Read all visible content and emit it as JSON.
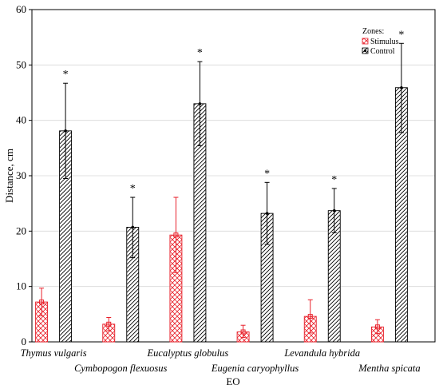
{
  "chart_data": {
    "type": "bar",
    "xlabel": "EO",
    "ylabel": "Distance, cm",
    "ylim": [
      0,
      60
    ],
    "yticks": [
      0,
      10,
      20,
      30,
      40,
      50,
      60
    ],
    "grid": true,
    "legend": {
      "title": "Zones:",
      "placement": "top-right"
    },
    "categories": [
      "Thymus vulgaris",
      "Cymbopogon flexuosus",
      "Eucalyptus globulus",
      "Eugenia caryophyllus",
      "Levandula hybrida",
      "Mentha spicata"
    ],
    "series": [
      {
        "name": "Stimulus",
        "color": "#e8202a",
        "pattern": "crosshatch",
        "values": [
          7.2,
          3.2,
          19.3,
          1.8,
          4.6,
          2.7
        ],
        "err_low": [
          4.7,
          2.0,
          12.5,
          0.8,
          1.6,
          1.5
        ],
        "err_high": [
          9.7,
          4.4,
          26.1,
          3.0,
          7.6,
          4.0
        ]
      },
      {
        "name": "Control",
        "color": "#000000",
        "pattern": "diagonal",
        "values": [
          38.1,
          20.7,
          43.0,
          23.2,
          23.7,
          45.9
        ],
        "err_low": [
          29.5,
          15.2,
          35.4,
          17.6,
          19.7,
          37.8
        ],
        "err_high": [
          46.7,
          26.1,
          50.6,
          28.8,
          27.7,
          53.9
        ],
        "significance": [
          "*",
          "*",
          "*",
          "*",
          "*",
          "*"
        ]
      }
    ]
  }
}
